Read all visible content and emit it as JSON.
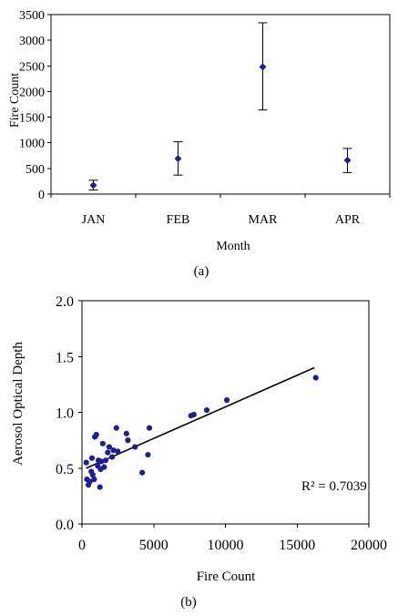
{
  "chart_data": [
    {
      "type": "scatter",
      "panel_label": "(a)",
      "xlabel": "Month",
      "ylabel": "Fire Count",
      "categories": [
        "JAN",
        "FEB",
        "MAR",
        "APR"
      ],
      "ylim": [
        0,
        3500
      ],
      "yticks": [
        "0",
        "500",
        "1000",
        "1500",
        "2000",
        "2500",
        "3000",
        "3500"
      ],
      "series": [
        {
          "values": [
            170,
            690,
            2480,
            660
          ],
          "error_low": [
            80,
            370,
            1640,
            420
          ],
          "error_high": [
            270,
            1020,
            3340,
            890
          ]
        }
      ],
      "grid": false,
      "color": "#1f1f8f"
    },
    {
      "type": "scatter",
      "panel_label": "(b)",
      "xlabel": "Fire Count",
      "ylabel": "Aerosol Optical Depth",
      "xlim": [
        0,
        20000
      ],
      "ylim": [
        0,
        2.0
      ],
      "xticks": [
        "0",
        "5000",
        "10000",
        "15000",
        "20000"
      ],
      "yticks": [
        "0.0",
        "0.5",
        "1.0",
        "1.5",
        "2.0"
      ],
      "series": [
        {
          "points": [
            [
              300,
              0.55
            ],
            [
              350,
              0.4
            ],
            [
              450,
              0.35
            ],
            [
              550,
              0.38
            ],
            [
              650,
              0.47
            ],
            [
              700,
              0.59
            ],
            [
              750,
              0.44
            ],
            [
              850,
              0.4
            ],
            [
              900,
              0.78
            ],
            [
              1000,
              0.8
            ],
            [
              1100,
              0.52
            ],
            [
              1150,
              0.57
            ],
            [
              1250,
              0.33
            ],
            [
              1300,
              0.49
            ],
            [
              1350,
              0.56
            ],
            [
              1450,
              0.72
            ],
            [
              1550,
              0.51
            ],
            [
              1650,
              0.57
            ],
            [
              1800,
              0.64
            ],
            [
              1900,
              0.69
            ],
            [
              2100,
              0.6
            ],
            [
              2200,
              0.66
            ],
            [
              2400,
              0.86
            ],
            [
              2500,
              0.65
            ],
            [
              3100,
              0.81
            ],
            [
              3200,
              0.75
            ],
            [
              3700,
              0.69
            ],
            [
              4200,
              0.46
            ],
            [
              4600,
              0.62
            ],
            [
              4700,
              0.86
            ],
            [
              7600,
              0.97
            ],
            [
              7800,
              0.98
            ],
            [
              8700,
              1.02
            ],
            [
              10100,
              1.11
            ],
            [
              16300,
              1.31
            ]
          ]
        }
      ],
      "trendline": {
        "x": [
          300,
          16200
        ],
        "y": [
          0.5,
          1.4
        ]
      },
      "annotation": "R² = 0.7039",
      "grid": false,
      "color": "#1f1f8f"
    }
  ]
}
